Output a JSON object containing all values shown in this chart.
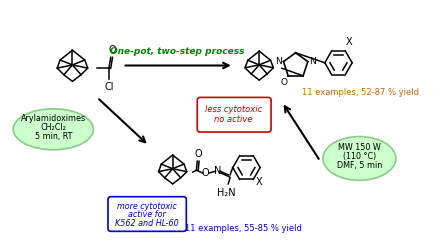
{
  "background_color": "#ffffff",
  "figsize": [
    4.34,
    2.44
  ],
  "dpi": 100,
  "top_arrow_label": "One-pot, two-step process",
  "top_arrow_label_color": "#008800",
  "left_ellipse_text_lines": [
    "Arylamidoximes",
    "CH₂Cl₂",
    "5 min, RT"
  ],
  "left_ellipse_color": "#ccffcc",
  "left_ellipse_edge": "#88cc88",
  "right_ellipse_text_lines": [
    "MW 150 W",
    "(110 °C)",
    "DMF, 5 min"
  ],
  "right_ellipse_color": "#ccffcc",
  "right_ellipse_edge": "#88cc88",
  "top_right_box_lines": [
    "less cytotoxic",
    "no active"
  ],
  "top_right_box_text_color": "#cc0000",
  "top_right_box_edge": "#cc0000",
  "bottom_box_lines": [
    "more cytotoxic",
    "active for",
    "K562 and HL-60"
  ],
  "bottom_box_text_color": "#0000cc",
  "bottom_box_edge": "#0000cc",
  "top_yield_text": "11 examples, 52-87 % yield",
  "top_yield_color": "#cc6600",
  "bottom_yield_text": "11 examples, 55-85 % yield",
  "bottom_yield_color": "#0000cc"
}
